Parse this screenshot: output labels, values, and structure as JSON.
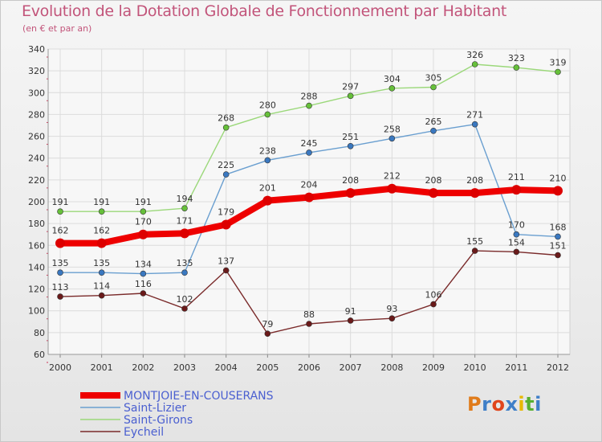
{
  "title": "Evolution de la Dotation Globale de Fonctionnement par Habitant",
  "subtitle": "(en € et par an)",
  "logo": {
    "text": "Proxiti",
    "letters": [
      "P",
      "r",
      "o",
      "x",
      "i",
      "t",
      "i"
    ],
    "colors": [
      "#e07b1a",
      "#3f7fc8",
      "#e0441c",
      "#3f7fc8",
      "#e8b800",
      "#58b030",
      "#3f7fc8"
    ]
  },
  "chart_data": {
    "type": "line",
    "title": "Evolution de la Dotation Globale de Fonctionnement par Habitant",
    "subtitle": "(en € et par an)",
    "xlabel": "",
    "ylabel": "",
    "x": [
      "2000",
      "2001",
      "2002",
      "2003",
      "2004",
      "2005",
      "2006",
      "2007",
      "2008",
      "2009",
      "2010",
      "2011",
      "2012"
    ],
    "ylim": [
      60,
      340
    ],
    "yticks": [
      60,
      80,
      100,
      120,
      140,
      160,
      180,
      200,
      220,
      240,
      260,
      280,
      300,
      320,
      340
    ],
    "grid": true,
    "legend_position": "bottom-left",
    "series": [
      {
        "name": "MONTJOIE-EN-COUSERANS",
        "color": "#ee0000",
        "marker": "#dd0000",
        "emphasis": true,
        "values": [
          162,
          162,
          170,
          171,
          179,
          201,
          204,
          208,
          212,
          208,
          208,
          211,
          210
        ]
      },
      {
        "name": "Saint-Lizier",
        "color": "#6a9fd0",
        "marker": "#3a78c0",
        "emphasis": false,
        "values": [
          135,
          135,
          134,
          135,
          225,
          238,
          245,
          251,
          258,
          265,
          271,
          170,
          168
        ]
      },
      {
        "name": "Saint-Girons",
        "color": "#9bd87a",
        "marker": "#66c03a",
        "emphasis": false,
        "values": [
          191,
          191,
          191,
          194,
          268,
          280,
          288,
          297,
          304,
          305,
          326,
          323,
          319
        ]
      },
      {
        "name": "Eycheil",
        "color": "#7a2a2a",
        "marker": "#6a1a1a",
        "emphasis": false,
        "values": [
          113,
          114,
          116,
          102,
          137,
          79,
          88,
          91,
          93,
          106,
          155,
          154,
          151
        ]
      }
    ]
  }
}
